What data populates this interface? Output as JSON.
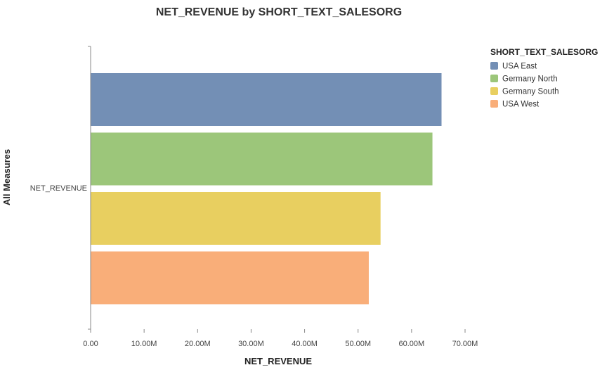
{
  "chart_data": {
    "type": "bar",
    "orientation": "horizontal",
    "title": "NET_REVENUE by SHORT_TEXT_SALESORG",
    "xlabel": "NET_REVENUE",
    "ylabel": "All Measures",
    "categories": [
      "NET_REVENUE"
    ],
    "series": [
      {
        "name": "USA East",
        "values": [
          65.6
        ],
        "color": "#738fb5"
      },
      {
        "name": "Germany North",
        "values": [
          63.9
        ],
        "color": "#9cc67a"
      },
      {
        "name": "Germany South",
        "values": [
          54.2
        ],
        "color": "#e8cf60"
      },
      {
        "name": "USA West",
        "values": [
          52.0
        ],
        "color": "#f9ae79"
      }
    ],
    "value_unit": "M",
    "xlim": [
      0,
      70
    ],
    "xticks": [
      {
        "value": 0,
        "label": "0.00"
      },
      {
        "value": 10,
        "label": "10.00M"
      },
      {
        "value": 20,
        "label": "20.00M"
      },
      {
        "value": 30,
        "label": "30.00M"
      },
      {
        "value": 40,
        "label": "40.00M"
      },
      {
        "value": 50,
        "label": "50.00M"
      },
      {
        "value": 60,
        "label": "60.00M"
      },
      {
        "value": 70,
        "label": "70.00M"
      }
    ],
    "grid": false,
    "legend": {
      "title": "SHORT_TEXT_SALESORG",
      "position": "top-right"
    }
  }
}
